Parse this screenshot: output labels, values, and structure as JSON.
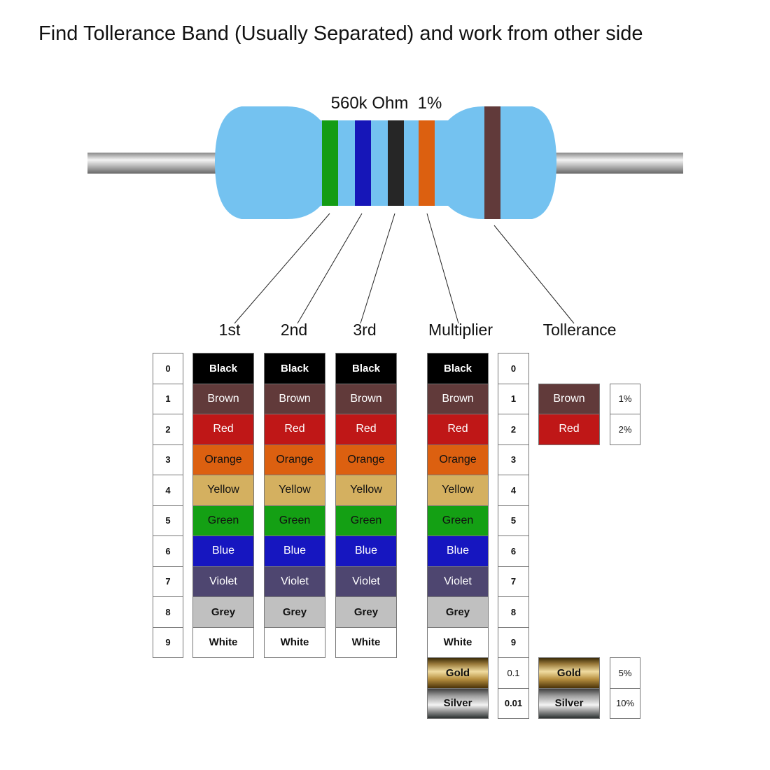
{
  "title": "Find Tollerance Band (Usually Separated) and work from other side",
  "resistor": {
    "label": "560k Ohm  1%",
    "body_color": "#74c2f0",
    "bands": [
      "#149c14",
      "#1616b8",
      "#262626",
      "#dc6010"
    ],
    "tolerance_band": "#613a3a"
  },
  "headers": {
    "first": "1st",
    "second": "2nd",
    "third": "3rd",
    "multiplier": "Multiplier",
    "tolerance": "Tollerance"
  },
  "digits": [
    "0",
    "1",
    "2",
    "3",
    "4",
    "5",
    "6",
    "7",
    "8",
    "9"
  ],
  "colors": [
    {
      "name": "Black",
      "bg": "#000000",
      "fg": "#ffffff",
      "bold": true
    },
    {
      "name": "Brown",
      "bg": "#613a3a",
      "fg": "#ffffff",
      "bold": false
    },
    {
      "name": "Red",
      "bg": "#bf1717",
      "fg": "#ffffff",
      "bold": false
    },
    {
      "name": "Orange",
      "bg": "#dc6010",
      "fg": "#111111",
      "bold": false
    },
    {
      "name": "Yellow",
      "bg": "#d4b060",
      "fg": "#111111",
      "bold": false
    },
    {
      "name": "Green",
      "bg": "#14a014",
      "fg": "#111111",
      "bold": false
    },
    {
      "name": "Blue",
      "bg": "#1616c0",
      "fg": "#ffffff",
      "bold": false
    },
    {
      "name": "Violet",
      "bg": "#4e4670",
      "fg": "#ffffff",
      "bold": false
    },
    {
      "name": "Grey",
      "bg": "#c0c0c0",
      "fg": "#111111",
      "bold": true
    },
    {
      "name": "White",
      "bg": "#ffffff",
      "fg": "#111111",
      "bold": true
    }
  ],
  "multiplier_extra": [
    {
      "name": "Gold",
      "value": "0.1"
    },
    {
      "name": "Silver",
      "value": "0.01"
    }
  ],
  "tolerance": [
    {
      "name": "Brown",
      "value": "1%",
      "bg": "#613a3a"
    },
    {
      "name": "Red",
      "value": "2%",
      "bg": "#bf1717"
    },
    {
      "name": "Gold",
      "value": "5%"
    },
    {
      "name": "Silver",
      "value": "10%"
    }
  ],
  "metal": {
    "Gold": "linear-gradient(#3a2a08,#9a7a3a 20%,#f0dca0 45%,#b89040 70%,#4a3208)",
    "Silver": "linear-gradient(#404040,#a0a0a0 25%,#f4f4f4 55%,#9a9a9a 75%,#2a3030)"
  }
}
